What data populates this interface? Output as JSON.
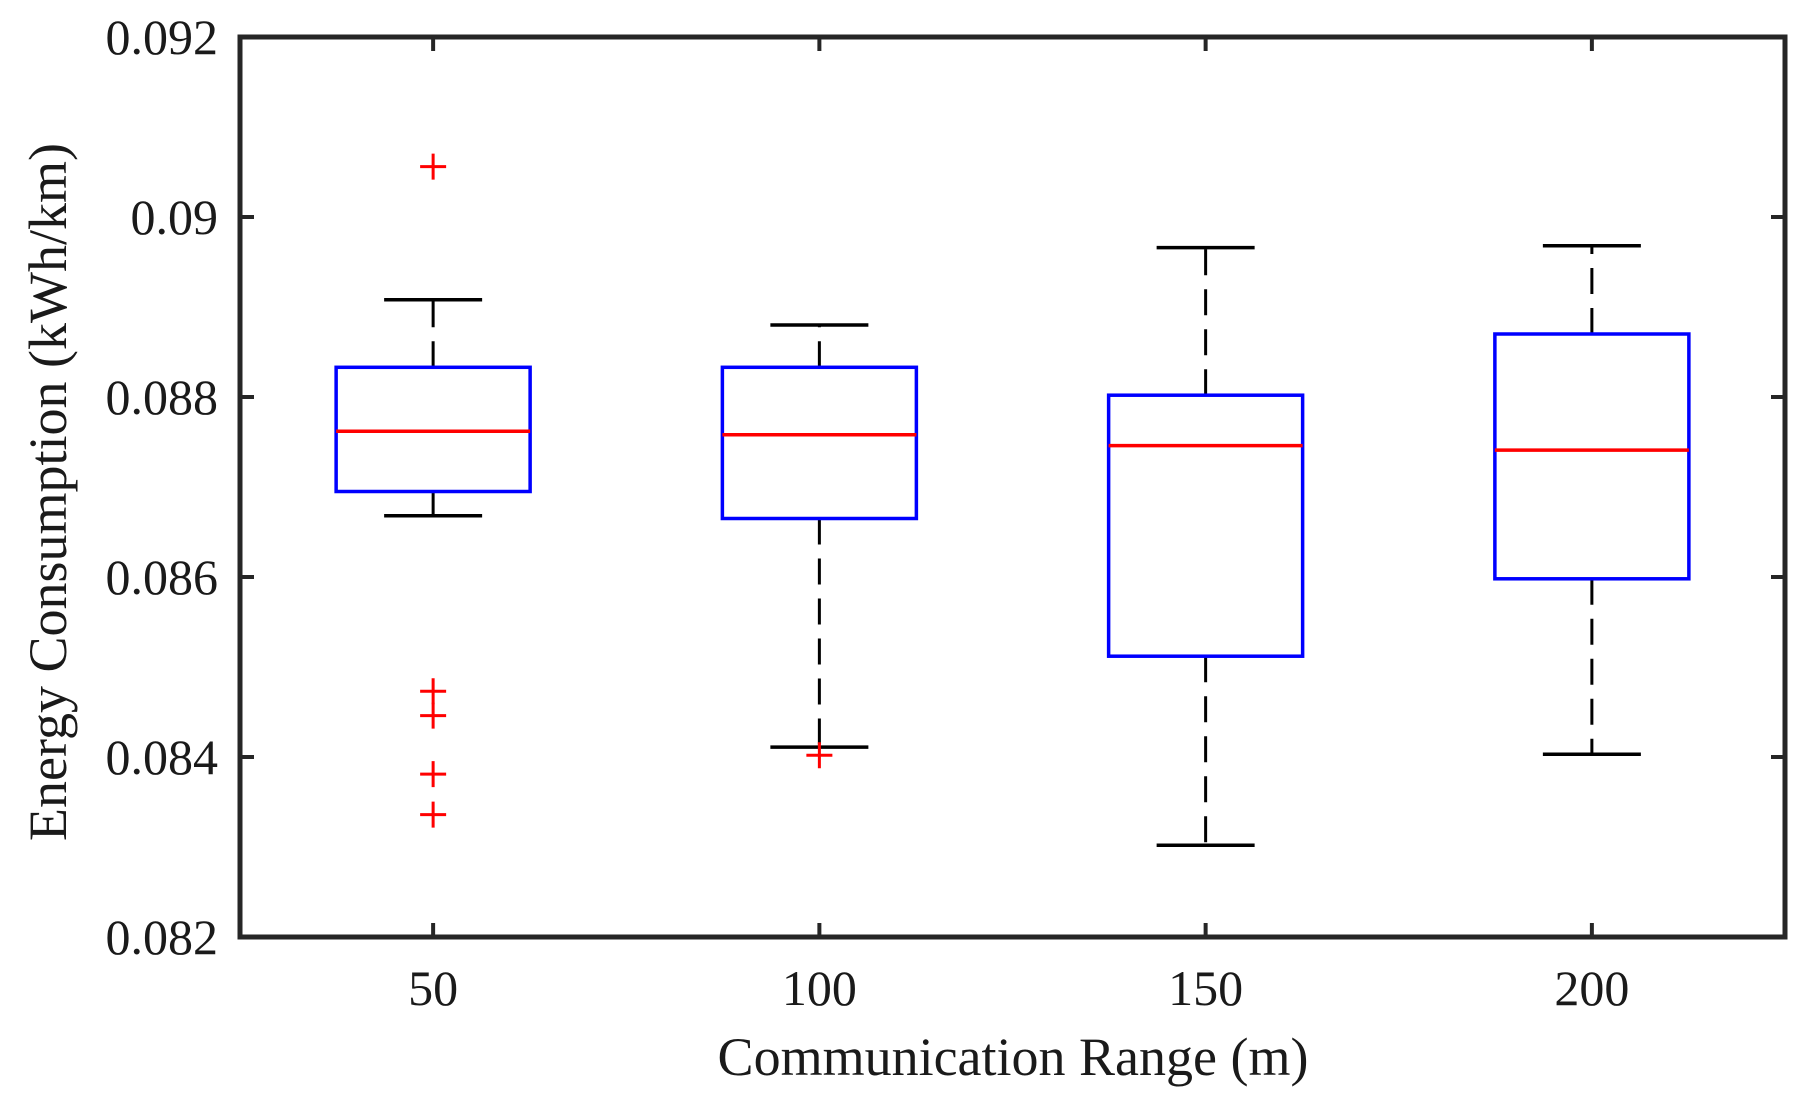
{
  "chart_data": {
    "type": "boxplot",
    "title": "",
    "xlabel": "Communication Range (m)",
    "ylabel": "Energy Consumption (kWh/km)",
    "ylim": [
      0.082,
      0.092
    ],
    "yticks": [
      0.082,
      0.084,
      0.086,
      0.088,
      0.09,
      0.092
    ],
    "ytick_labels": [
      "0.082",
      "0.084",
      "0.086",
      "0.088",
      "0.09",
      "0.092"
    ],
    "categories": [
      "50",
      "100",
      "150",
      "200"
    ],
    "boxes": [
      {
        "category": "50",
        "whisker_low": 0.08668,
        "q1": 0.08695,
        "median": 0.08762,
        "q3": 0.08833,
        "whisker_high": 0.08908,
        "outliers": [
          0.09056,
          0.08473,
          0.08446,
          0.08381,
          0.08336
        ]
      },
      {
        "category": "100",
        "whisker_low": 0.08411,
        "q1": 0.08665,
        "median": 0.08758,
        "q3": 0.08833,
        "whisker_high": 0.0888,
        "outliers": [
          0.08402
        ]
      },
      {
        "category": "150",
        "whisker_low": 0.08302,
        "q1": 0.08512,
        "median": 0.08746,
        "q3": 0.08802,
        "whisker_high": 0.08966,
        "outliers": []
      },
      {
        "category": "200",
        "whisker_low": 0.08403,
        "q1": 0.08598,
        "median": 0.08741,
        "q3": 0.0887,
        "whisker_high": 0.08968,
        "outliers": []
      }
    ],
    "colors": {
      "box": "#0000ff",
      "median": "#ff0000",
      "whisker": "#000000",
      "outlier": "#ff0000",
      "axis": "#262626"
    },
    "grid": false,
    "legend": "none"
  }
}
